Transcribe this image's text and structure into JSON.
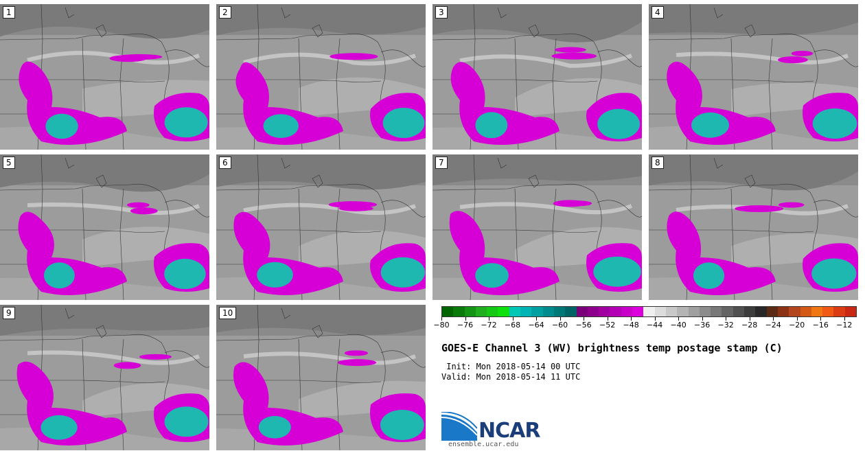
{
  "panels": [
    "1",
    "2",
    "3",
    "4",
    "5",
    "6",
    "7",
    "8",
    "9",
    "10"
  ],
  "colorbar": {
    "ticks": [
      "−80",
      "−76",
      "−72",
      "−68",
      "−64",
      "−60",
      "−56",
      "−52",
      "−48",
      "−44",
      "−40",
      "−36",
      "−32",
      "−28",
      "−24",
      "−20",
      "−16",
      "−12"
    ],
    "colors": [
      "#006400",
      "#0a7a0a",
      "#149414",
      "#1eae1e",
      "#14c814",
      "#0ee00e",
      "#00c8b4",
      "#00b4b4",
      "#00a0a0",
      "#008c8c",
      "#007878",
      "#006464",
      "#7a007a",
      "#8c008c",
      "#a000a0",
      "#b400b4",
      "#c800c8",
      "#dc00dc",
      "#f0f0f0",
      "#dcdcdc",
      "#c8c8c8",
      "#b4b4b4",
      "#a0a0a0",
      "#8c8c8c",
      "#787878",
      "#646464",
      "#505050",
      "#3c3c3c",
      "#282828",
      "#5a2a14",
      "#8c3214",
      "#b4461e",
      "#d25a14",
      "#f07814",
      "#f05a14",
      "#dc3c14",
      "#c82814"
    ]
  },
  "title": "GOES-E Channel 3 (WV) brightness temp postage stamp (C)",
  "init": " Init: Mon 2018-05-14 00 UTC",
  "valid": "Valid: Mon 2018-05-14 11 UTC",
  "logo": {
    "name": "NCAR",
    "url": "ensemble.ucar.edu"
  },
  "legend_colors": {
    "cold_magenta": "#d600d6",
    "cloud_cyan": "#1fb8b0",
    "background_gray": "#9a9a9a"
  }
}
